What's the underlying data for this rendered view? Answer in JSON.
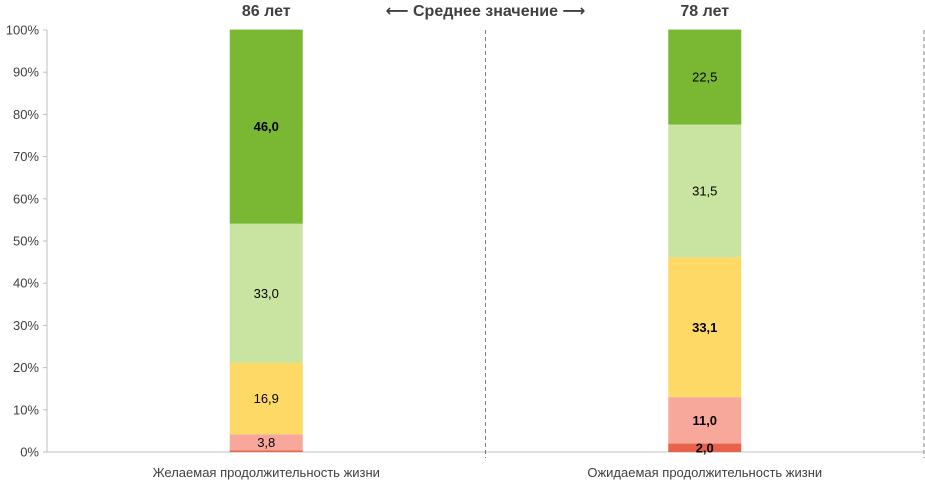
{
  "chart_data": {
    "type": "bar",
    "stacked": true,
    "percent": true,
    "categories": [
      "Желаемая продолжительность жизни",
      "Ожидаемая продолжительность жизни"
    ],
    "means": [
      "86 лет",
      "78 лет"
    ],
    "center_note": "⟵ Среднее значение ⟶",
    "ylim": [
      0,
      100
    ],
    "yticks": [
      "0%",
      "10%",
      "20%",
      "30%",
      "40%",
      "50%",
      "60%",
      "70%",
      "80%",
      "90%",
      "100%"
    ],
    "grid": false,
    "series": [
      {
        "color": "#E8624A",
        "values": [
          0.4,
          2.0
        ],
        "labels": [
          "",
          "2,0"
        ],
        "bold": [
          false,
          true
        ]
      },
      {
        "color": "#F8A89A",
        "values": [
          3.8,
          11.0
        ],
        "labels": [
          "3,8",
          "11,0"
        ],
        "bold": [
          false,
          true
        ]
      },
      {
        "color": "#FFD966",
        "values": [
          16.9,
          33.1
        ],
        "labels": [
          "16,9",
          "33,1"
        ],
        "bold": [
          false,
          true
        ]
      },
      {
        "color": "#C9E4A0",
        "values": [
          33.0,
          31.5
        ],
        "labels": [
          "33,0",
          "31,5"
        ],
        "bold": [
          false,
          false
        ]
      },
      {
        "color": "#7AB833",
        "values": [
          46.0,
          22.5
        ],
        "labels": [
          "46,0",
          "22,5"
        ],
        "bold": [
          true,
          false
        ]
      }
    ]
  }
}
